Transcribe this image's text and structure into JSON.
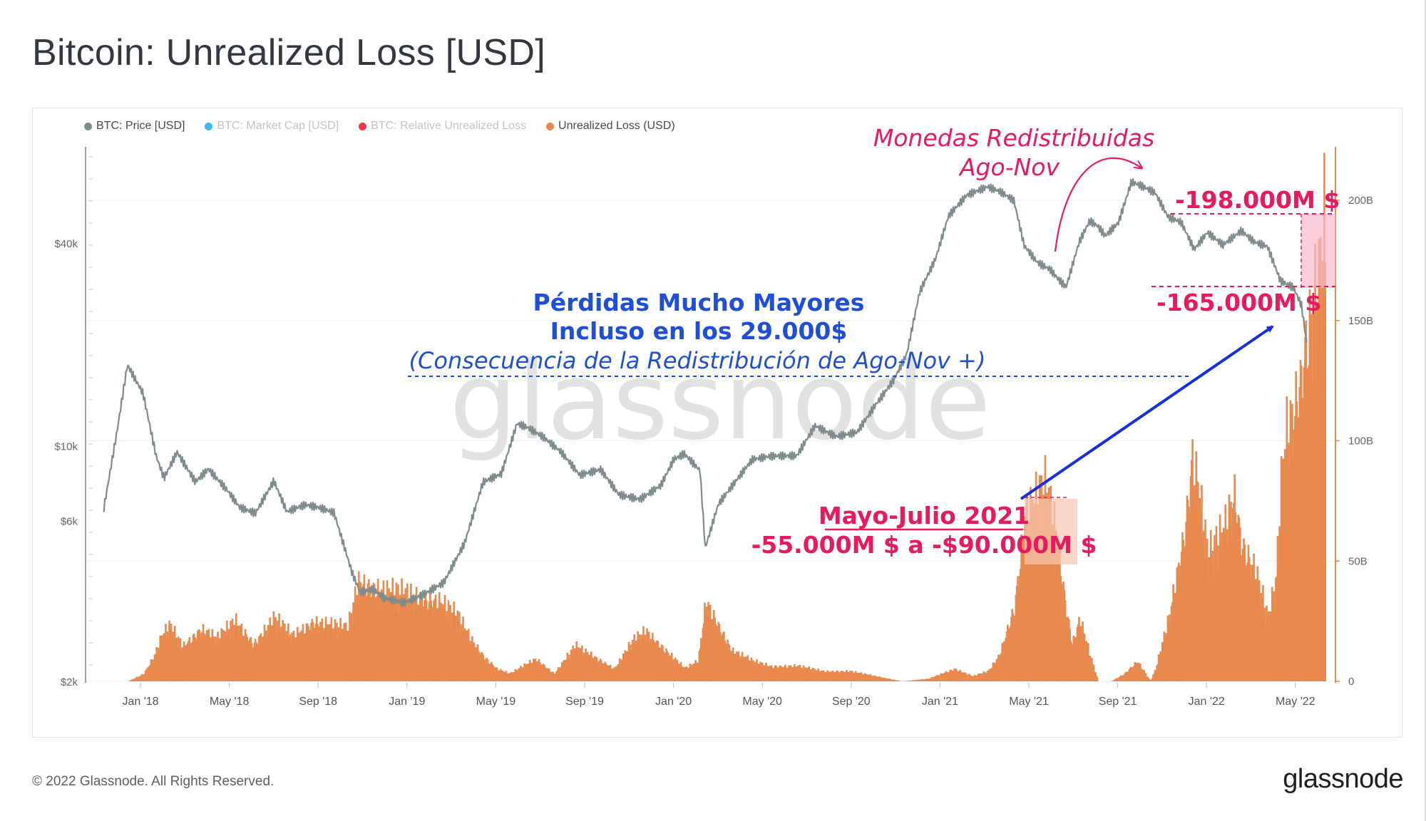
{
  "title": "Bitcoin: Unrealized Loss [USD]",
  "legend": [
    {
      "label": "BTC: Price [USD]",
      "color": "#7f8c8d",
      "active": true
    },
    {
      "label": "BTC: Market Cap [USD]",
      "color": "#3bb9f1",
      "active": false
    },
    {
      "label": "BTC: Relative Unrealized Loss",
      "color": "#f0384d",
      "active": false
    },
    {
      "label": "Unrealized Loss (USD)",
      "color": "#e8894e",
      "active": true
    }
  ],
  "footer": {
    "copyright": "© 2022 Glassnode. All Rights Reserved.",
    "logo": "glassnode"
  },
  "chart_data": {
    "type": "line",
    "watermark": "glassnode",
    "x_ticks": [
      "Jan '18",
      "May '18",
      "Sep '18",
      "Jan '19",
      "May '19",
      "Sep '19",
      "Jan '20",
      "May '20",
      "Sep '20",
      "Jan '21",
      "May '21",
      "Sep '21",
      "Jan '22",
      "May '22"
    ],
    "y_left": {
      "scale": "log",
      "ticks": [
        "$40k",
        "$10k",
        "$6k",
        "$2k"
      ],
      "tick_values": [
        40000,
        10000,
        6000,
        2000
      ],
      "range": [
        2000,
        80000
      ]
    },
    "y_right": {
      "scale": "linear",
      "ticks": [
        "200B",
        "150B",
        "100B",
        "50B",
        "0"
      ],
      "tick_values": [
        200,
        150,
        100,
        50,
        0
      ],
      "range": [
        0,
        223
      ]
    },
    "series": [
      {
        "name": "BTC: Price [USD]",
        "color": "#7f8c8d",
        "axis": "left",
        "x": [
          2017.9,
          2017.95,
          2017.99,
          2018.05,
          2018.1,
          2018.13,
          2018.18,
          2018.25,
          2018.3,
          2018.37,
          2018.42,
          2018.48,
          2018.55,
          2018.6,
          2018.67,
          2018.72,
          2018.78,
          2018.85,
          2018.88,
          2018.93,
          2018.97,
          2019.05,
          2019.12,
          2019.2,
          2019.28,
          2019.35,
          2019.42,
          2019.48,
          2019.52,
          2019.58,
          2019.65,
          2019.72,
          2019.8,
          2019.87,
          2019.95,
          2020.03,
          2020.08,
          2020.12,
          2020.18,
          2020.2,
          2020.25,
          2020.3,
          2020.38,
          2020.45,
          2020.55,
          2020.62,
          2020.7,
          2020.78,
          2020.85,
          2020.92,
          2020.97,
          2021.02,
          2021.08,
          2021.13,
          2021.2,
          2021.28,
          2021.33,
          2021.38,
          2021.42,
          2021.47,
          2021.52,
          2021.55,
          2021.58,
          2021.63,
          2021.67,
          2021.7,
          2021.73,
          2021.78,
          2021.83,
          2021.87,
          2021.92,
          2021.97,
          2022.02,
          2022.07,
          2022.12,
          2022.18,
          2022.25,
          2022.3,
          2022.35,
          2022.4,
          2022.45,
          2022.48,
          2022.5
        ],
        "values": [
          6500,
          11000,
          17500,
          14500,
          9500,
          8200,
          9800,
          8000,
          8700,
          7500,
          6600,
          6300,
          7800,
          6300,
          6600,
          6500,
          6300,
          4200,
          3700,
          3800,
          3600,
          3500,
          3700,
          4000,
          5200,
          7800,
          8200,
          11500,
          11200,
          10500,
          9500,
          8200,
          8600,
          7300,
          7100,
          7800,
          9300,
          9600,
          8500,
          5000,
          6700,
          7500,
          9000,
          9200,
          9300,
          11500,
          10800,
          11200,
          13500,
          16000,
          19000,
          29000,
          36000,
          48000,
          55000,
          58000,
          56000,
          53000,
          39000,
          35000,
          33500,
          31500,
          30000,
          41000,
          47500,
          46000,
          43000,
          47000,
          62000,
          60000,
          57000,
          48000,
          46000,
          38000,
          42500,
          39000,
          43000,
          40000,
          39000,
          31000,
          29800,
          26500,
          20500
        ]
      },
      {
        "name": "Unrealized Loss (USD)",
        "color": "#e8894e",
        "axis": "right",
        "x": [
          2017.93,
          2017.99,
          2018.05,
          2018.09,
          2018.12,
          2018.15,
          2018.2,
          2018.27,
          2018.33,
          2018.4,
          2018.47,
          2018.55,
          2018.62,
          2018.7,
          2018.78,
          2018.83,
          2018.87,
          2018.92,
          2018.97,
          2019.05,
          2019.12,
          2019.18,
          2019.25,
          2019.3,
          2019.35,
          2019.4,
          2019.45,
          2019.55,
          2019.62,
          2019.7,
          2019.77,
          2019.85,
          2019.92,
          2019.97,
          2020.05,
          2020.12,
          2020.17,
          2020.2,
          2020.25,
          2020.3,
          2020.38,
          2020.45,
          2020.55,
          2020.65,
          2020.75,
          2020.85,
          2020.95,
          2021.05,
          2021.15,
          2021.22,
          2021.28,
          2021.32,
          2021.38,
          2021.42,
          2021.45,
          2021.5,
          2021.54,
          2021.57,
          2021.6,
          2021.63,
          2021.67,
          2021.7,
          2021.75,
          2021.8,
          2021.85,
          2021.9,
          2021.92,
          2021.97,
          2022.03,
          2022.06,
          2022.08,
          2022.12,
          2022.18,
          2022.22,
          2022.25,
          2022.3,
          2022.35,
          2022.38,
          2022.4,
          2022.42,
          2022.45,
          2022.48,
          2022.5,
          2022.55,
          2022.57
        ],
        "values": [
          0,
          0,
          3,
          10,
          18,
          22,
          14,
          21,
          17,
          24,
          15,
          25,
          18,
          24,
          22,
          21,
          40,
          38,
          36,
          35,
          33,
          32,
          26,
          17,
          10,
          5,
          3,
          9,
          3,
          14,
          10,
          5,
          16,
          20,
          12,
          5,
          8,
          32,
          22,
          12,
          8,
          6,
          6,
          4,
          4,
          2,
          0,
          1,
          5,
          2,
          4,
          10,
          30,
          65,
          70,
          78,
          60,
          35,
          15,
          25,
          10,
          0,
          0,
          3,
          8,
          0,
          5,
          25,
          60,
          90,
          80,
          50,
          60,
          75,
          55,
          45,
          25,
          40,
          80,
          100,
          110,
          125,
          140,
          165,
          188
        ]
      }
    ],
    "annotations": [
      {
        "text": "Monedas Redistribuidas",
        "color": "#e8195d",
        "style": "italic"
      },
      {
        "text": "Ago-Nov",
        "color": "#e8195d",
        "style": "italic"
      },
      {
        "text": "-198.000M $",
        "color": "#e8195d",
        "style": "bold"
      },
      {
        "text": "-165.000M $",
        "color": "#e8195d",
        "style": "bold"
      },
      {
        "text": "Pérdidas Mucho Mayores",
        "color": "#1f4fd8",
        "style": "bold"
      },
      {
        "text": "Incluso en los 29.000$",
        "color": "#1f4fd8",
        "style": "bold"
      },
      {
        "text": "(Consecuencia de la Redistribución de Ago-Nov +)",
        "color": "#1f4fd8",
        "style": "italic"
      },
      {
        "text": "Mayo-Julio 2021",
        "color": "#e8195d",
        "style": "bold-underline"
      },
      {
        "text": "-55.000M $ a -$90.000M $",
        "color": "#e8195d",
        "style": "bold"
      }
    ]
  }
}
